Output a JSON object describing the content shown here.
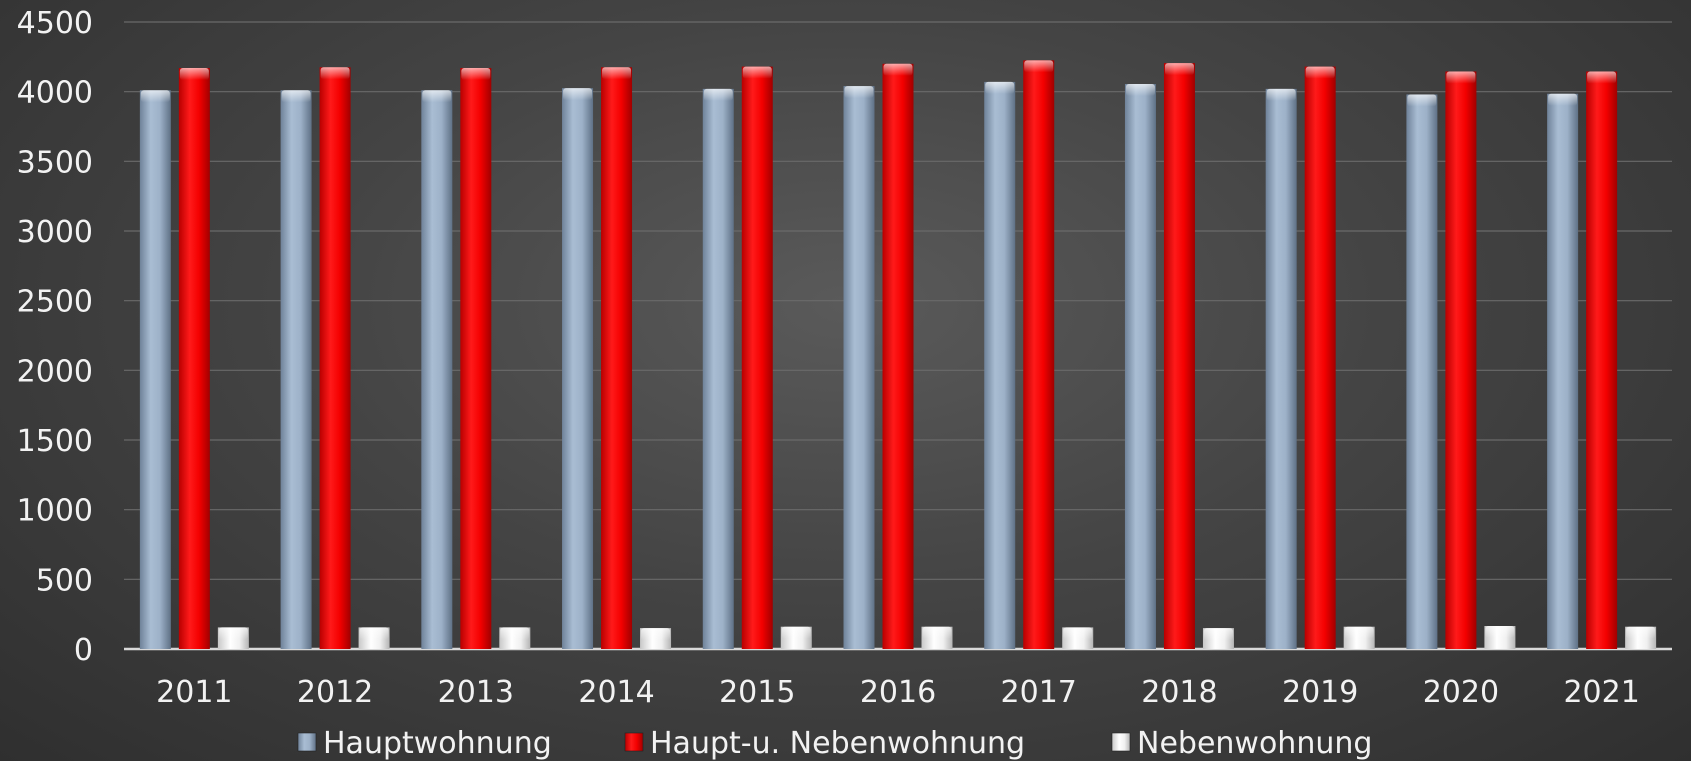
{
  "chart_data": {
    "type": "bar",
    "title": "",
    "xlabel": "",
    "ylabel": "",
    "categories": [
      "2011",
      "2012",
      "2013",
      "2014",
      "2015",
      "2016",
      "2017",
      "2018",
      "2019",
      "2020",
      "2021"
    ],
    "series": [
      {
        "name": "Hauptwohnung",
        "color": "#9aafc6",
        "values": [
          4010,
          4010,
          4010,
          4025,
          4020,
          4040,
          4070,
          4055,
          4020,
          3980,
          3985
        ]
      },
      {
        "name": "Haupt-u. Nebenwohnung",
        "color": "#ff0000",
        "values": [
          4170,
          4175,
          4170,
          4175,
          4180,
          4200,
          4225,
          4205,
          4180,
          4145,
          4145
        ]
      },
      {
        "name": "Nebenwohnung",
        "color": "#f4f4f4",
        "values": [
          155,
          155,
          155,
          150,
          160,
          160,
          155,
          150,
          160,
          165,
          160
        ]
      }
    ],
    "ylim": [
      0,
      4500
    ],
    "yticks": [
      "0",
      "500",
      "1000",
      "1500",
      "2000",
      "2500",
      "3000",
      "3500",
      "4000",
      "4500"
    ],
    "grid": true,
    "legend": "bottom"
  }
}
